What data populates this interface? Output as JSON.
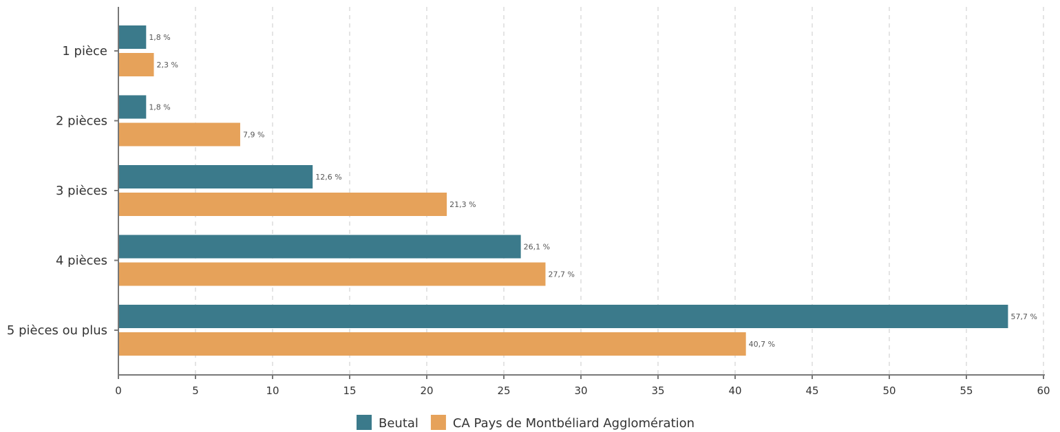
{
  "chart_data": {
    "type": "bar",
    "orientation": "horizontal",
    "categories": [
      "1 pièce",
      "2 pièces",
      "3 pièces",
      "4 pièces",
      "5 pièces ou plus"
    ],
    "series": [
      {
        "name": "Beutal",
        "color": "#3b7a8b",
        "values": [
          1.8,
          1.8,
          12.6,
          26.1,
          57.7
        ],
        "labels": [
          "1,8 %",
          "1,8 %",
          "12,6 %",
          "26,1 %",
          "57,7 %"
        ]
      },
      {
        "name": "CA Pays de Montbéliard Agglomération",
        "color": "#e6a25a",
        "values": [
          2.3,
          7.9,
          21.3,
          27.7,
          40.7
        ],
        "labels": [
          "2,3 %",
          "7,9 %",
          "21,3 %",
          "27,7 %",
          "40,7 %"
        ]
      }
    ],
    "xlim": [
      0,
      60
    ],
    "xticks": [
      "0",
      "5",
      "10",
      "15",
      "20",
      "25",
      "30",
      "35",
      "40",
      "45",
      "50",
      "55",
      "60"
    ],
    "grid": "vertical dashed",
    "legend_position": "bottom-center",
    "title": "",
    "xlabel": "",
    "ylabel": ""
  }
}
